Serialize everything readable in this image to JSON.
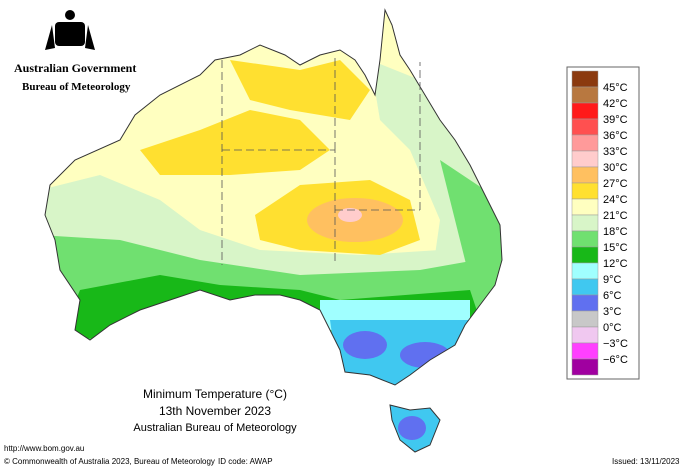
{
  "header": {
    "government": "Australian Government",
    "agency": "Bureau of Meteorology"
  },
  "legend": {
    "colors": [
      "#8b3a0f",
      "#b87840",
      "#ff1a1a",
      "#ff5050",
      "#ff9a9a",
      "#ffcccc",
      "#ffc060",
      "#ffe030",
      "#ffffc0",
      "#d8f5c8",
      "#70e070",
      "#18b818",
      "#a0ffff",
      "#40c8f0",
      "#6070f0",
      "#c8c8c8",
      "#f0c8f0",
      "#ff40ff",
      "#a000a0"
    ],
    "labels": [
      "45°C",
      "42°C",
      "39°C",
      "36°C",
      "33°C",
      "30°C",
      "27°C",
      "24°C",
      "21°C",
      "18°C",
      "15°C",
      "12°C",
      "9°C",
      "6°C",
      "3°C",
      "0°C",
      "−3°C",
      "−6°C"
    ]
  },
  "title": {
    "line1": "Minimum Temperature (°C)",
    "line2": "13th November 2023",
    "line3": "Australian Bureau of Meteorology"
  },
  "footer": {
    "url": "http://www.bom.gov.au",
    "copyright": "© Commonwealth of Australia 2023, Bureau of Meteorology",
    "id_code": "ID code: AWAP",
    "issued": "Issued: 13/11/2023"
  }
}
